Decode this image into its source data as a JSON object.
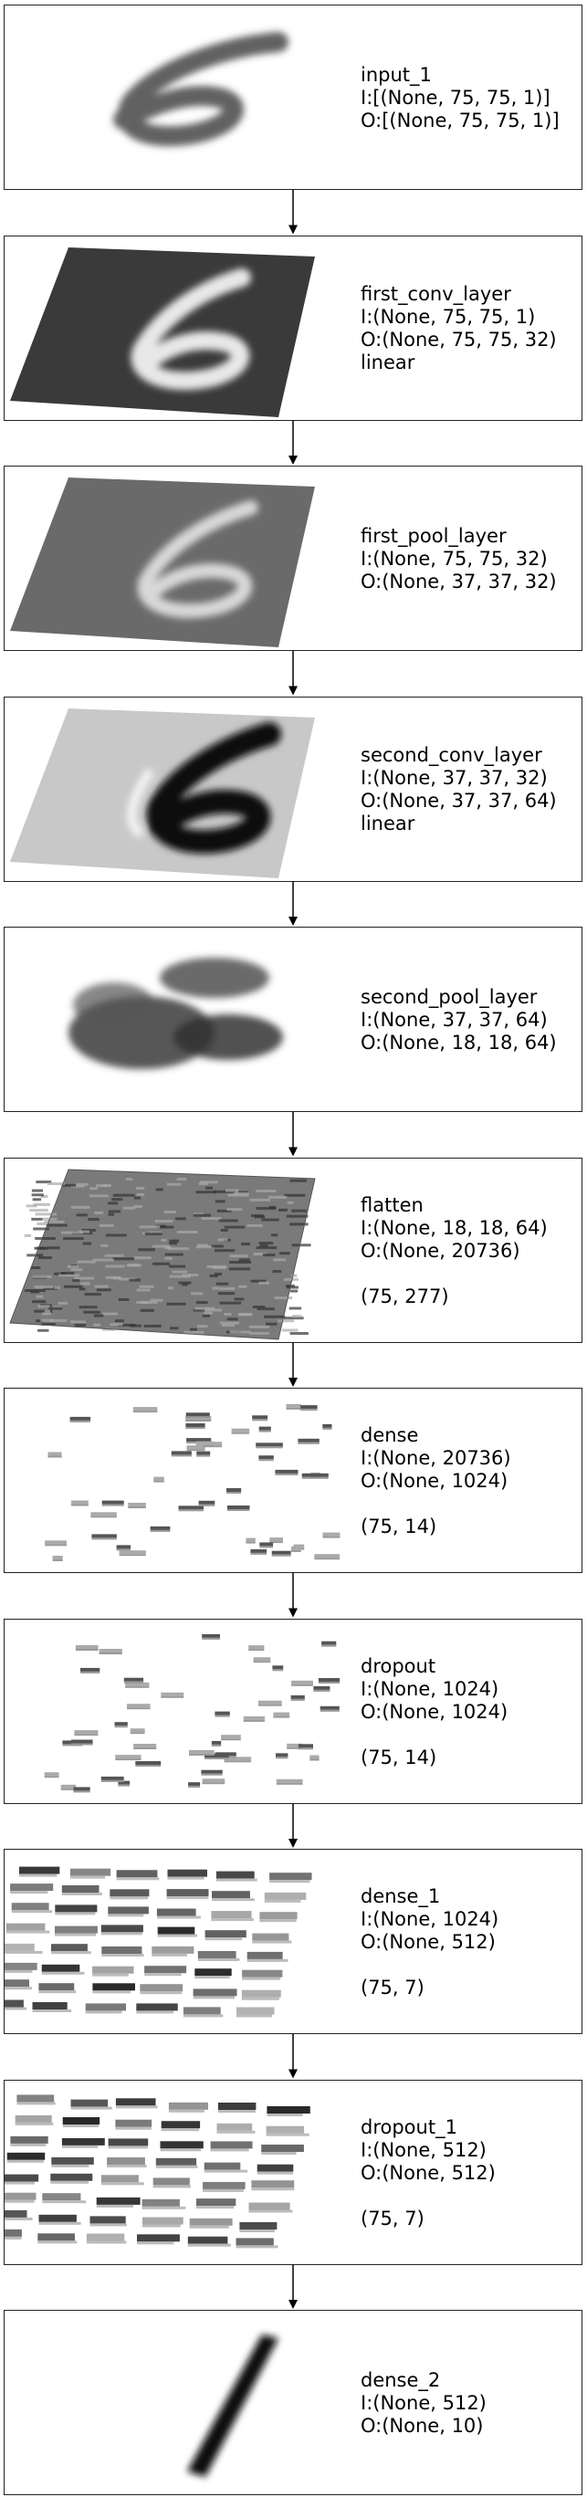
{
  "layers": [
    {
      "name": "input_1",
      "input": "I:[(None, 75, 75, 1)]",
      "output": "O:[(None, 75, 75, 1)]",
      "extra": "",
      "shape": "",
      "viz": "digit-light"
    },
    {
      "name": "first_conv_layer",
      "input": "I:(None, 75, 75, 1)",
      "output": "O:(None, 75, 75, 32)",
      "extra": "linear",
      "shape": "",
      "viz": "plane-dark"
    },
    {
      "name": "first_pool_layer",
      "input": "I:(None, 75, 75, 32)",
      "output": "O:(None, 37, 37, 32)",
      "extra": "",
      "shape": "",
      "viz": "plane-grey"
    },
    {
      "name": "second_conv_layer",
      "input": "I:(None, 37, 37, 32)",
      "output": "O:(None, 37, 37, 64)",
      "extra": "linear",
      "shape": "",
      "viz": "plane-light"
    },
    {
      "name": "second_pool_layer",
      "input": "I:(None, 37, 37, 64)",
      "output": "O:(None, 18, 18, 64)",
      "extra": "",
      "shape": "",
      "viz": "blob"
    },
    {
      "name": "flatten",
      "input": "I:(None, 18, 18, 64)",
      "output": "O:(None, 20736)",
      "extra": "",
      "shape": "(75, 277)",
      "viz": "plane-noise"
    },
    {
      "name": "dense",
      "input": "I:(None, 20736)",
      "output": "O:(None, 1024)",
      "extra": "",
      "shape": "(75, 14)",
      "viz": "sparse"
    },
    {
      "name": "dropout",
      "input": "I:(None, 1024)",
      "output": "O:(None, 1024)",
      "extra": "",
      "shape": "(75, 14)",
      "viz": "sparse"
    },
    {
      "name": "dense_1",
      "input": "I:(None, 1024)",
      "output": "O:(None, 512)",
      "extra": "",
      "shape": "(75, 7)",
      "viz": "bars"
    },
    {
      "name": "dropout_1",
      "input": "I:(None, 512)",
      "output": "O:(None, 512)",
      "extra": "",
      "shape": "(75, 7)",
      "viz": "bars"
    },
    {
      "name": "dense_2",
      "input": "I:(None, 512)",
      "output": "O:(None, 10)",
      "extra": "",
      "shape": "",
      "viz": "stick"
    }
  ]
}
